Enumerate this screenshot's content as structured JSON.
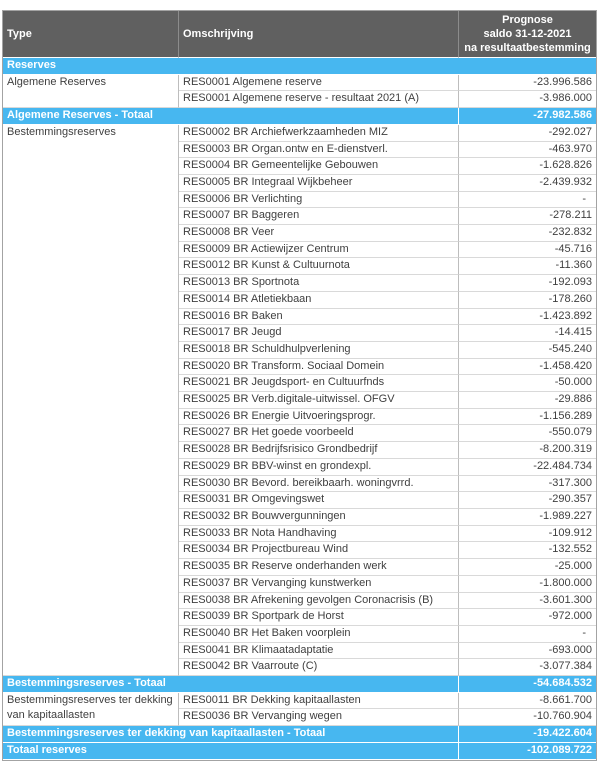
{
  "header": {
    "col_type": "Type",
    "col_desc": "Omschrijving",
    "col_value_lines": [
      "Prognose",
      "saldo 31-12-2021",
      "na resultaatbestemming"
    ]
  },
  "colors": {
    "header_bg": "#606060",
    "band_bg": "#47b7f0",
    "data_text": "#3f3f3f"
  },
  "rows": [
    {
      "kind": "band",
      "label": "Reserves"
    },
    {
      "kind": "data",
      "typeCell": {
        "text": "Algemene Reserves",
        "rowspan": 2
      },
      "desc": "RES0001 Algemene reserve",
      "value": "-23.996.586"
    },
    {
      "kind": "data",
      "desc": "RES0001 Algemene reserve - resultaat 2021 (A)",
      "value": "-3.986.000"
    },
    {
      "kind": "total",
      "label": "Algemene Reserves - Totaal",
      "value": "-27.982.586"
    },
    {
      "kind": "data",
      "typeCell": {
        "text": "Bestemmingsreserves",
        "rowspan": 33
      },
      "desc": "RES0002 BR Archiefwerkzaamheden MIZ",
      "value": "-292.027"
    },
    {
      "kind": "data",
      "desc": "RES0003 BR Organ.ontw en E-dienstverl.",
      "value": "-463.970"
    },
    {
      "kind": "data",
      "desc": "RES0004 BR Gemeentelijke Gebouwen",
      "value": "-1.628.826"
    },
    {
      "kind": "data",
      "desc": "RES0005 BR Integraal Wijkbeheer",
      "value": "-2.439.932"
    },
    {
      "kind": "data",
      "desc": "RES0006 BR Verlichting",
      "value": "-"
    },
    {
      "kind": "data",
      "desc": "RES0007 BR Baggeren",
      "value": "-278.211"
    },
    {
      "kind": "data",
      "desc": "RES0008 BR Veer",
      "value": "-232.832"
    },
    {
      "kind": "data",
      "desc": "RES0009 BR Actiewijzer Centrum",
      "value": "-45.716"
    },
    {
      "kind": "data",
      "desc": "RES0012 BR Kunst & Cultuurnota",
      "value": "-11.360"
    },
    {
      "kind": "data",
      "desc": "RES0013 BR Sportnota",
      "value": "-192.093"
    },
    {
      "kind": "data",
      "desc": "RES0014 BR Atletiekbaan",
      "value": "-178.260"
    },
    {
      "kind": "data",
      "desc": "RES0016 BR Baken",
      "value": "-1.423.892"
    },
    {
      "kind": "data",
      "desc": "RES0017 BR Jeugd",
      "value": "-14.415"
    },
    {
      "kind": "data",
      "desc": "RES0018 BR Schuldhulpverlening",
      "value": "-545.240"
    },
    {
      "kind": "data",
      "desc": "RES0020 BR Transform. Sociaal Domein",
      "value": "-1.458.420"
    },
    {
      "kind": "data",
      "desc": "RES0021 BR Jeugdsport- en Cultuurfnds",
      "value": "-50.000"
    },
    {
      "kind": "data",
      "desc": "RES0025 BR Verb.digitale-uitwissel. OFGV",
      "value": "-29.886"
    },
    {
      "kind": "data",
      "desc": "RES0026 BR Energie Uitvoeringsprogr.",
      "value": "-1.156.289"
    },
    {
      "kind": "data",
      "desc": "RES0027 BR Het goede voorbeeld",
      "value": "-550.079"
    },
    {
      "kind": "data",
      "desc": "RES0028 BR Bedrijfsrisico Grondbedrijf",
      "value": "-8.200.319"
    },
    {
      "kind": "data",
      "desc": "RES0029 BR BBV-winst en grondexpl.",
      "value": "-22.484.734"
    },
    {
      "kind": "data",
      "desc": "RES0030 BR Bevord. bereikbaarh. woningvrrd.",
      "value": "-317.300"
    },
    {
      "kind": "data",
      "desc": "RES0031 BR Omgevingswet",
      "value": "-290.357"
    },
    {
      "kind": "data",
      "desc": "RES0032 BR Bouwvergunningen",
      "value": "-1.989.227"
    },
    {
      "kind": "data",
      "desc": "RES0033 BR Nota Handhaving",
      "value": "-109.912"
    },
    {
      "kind": "data",
      "desc": "RES0034 BR Projectbureau Wind",
      "value": "-132.552"
    },
    {
      "kind": "data",
      "desc": "RES0035 BR Reserve onderhanden werk",
      "value": "-25.000"
    },
    {
      "kind": "data",
      "desc": "RES0037 BR Vervanging kunstwerken",
      "value": "-1.800.000"
    },
    {
      "kind": "data",
      "desc": "RES0038 BR Afrekening gevolgen Coronacrisis (B)",
      "value": "-3.601.300"
    },
    {
      "kind": "data",
      "desc": "RES0039 BR Sportpark de Horst",
      "value": "-972.000"
    },
    {
      "kind": "data",
      "desc": "RES0040 BR Het Baken voorplein",
      "value": "-"
    },
    {
      "kind": "data",
      "desc": "RES0041 BR Klimaatadaptatie",
      "value": "-693.000"
    },
    {
      "kind": "data",
      "desc": "RES0042 BR Vaarroute (C)",
      "value": "-3.077.384"
    },
    {
      "kind": "total",
      "label": "Bestemmingsreserves - Totaal",
      "value": "-54.684.532"
    },
    {
      "kind": "data",
      "typeCell": {
        "text": "Bestemmingsreserves ter dekking van kapitaallasten",
        "rowspan": 2
      },
      "desc": "RES0011 BR Dekking kapitaallasten",
      "value": "-8.661.700"
    },
    {
      "kind": "data",
      "desc": "RES0036 BR Vervanging wegen",
      "value": "-10.760.904"
    },
    {
      "kind": "total",
      "label": "Bestemmingsreserves ter dekking van kapitaallasten - Totaal",
      "value": "-19.422.604"
    },
    {
      "kind": "total",
      "label": "Totaal reserves",
      "value": "-102.089.722"
    }
  ]
}
